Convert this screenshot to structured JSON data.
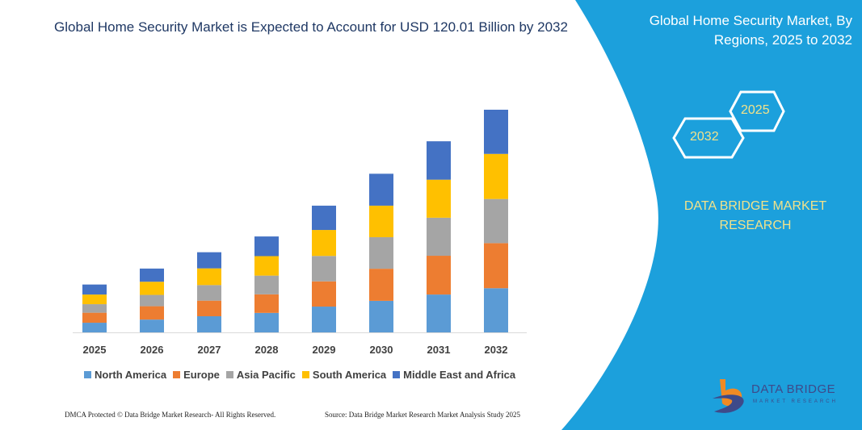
{
  "header": {
    "title": "Global Home Security Market is Expected to Account for USD 120.01 Billion by 2032"
  },
  "side_panel": {
    "title": "Global Home Security Market, By Regions, 2025 to 2032",
    "hex_start": "2025",
    "hex_end": "2032",
    "brand": "DATA BRIDGE MARKET RESEARCH",
    "background_color": "#1ca0dc",
    "logo_text": "DATA BRIDGE",
    "logo_subtext": "MARKET RESEARCH"
  },
  "footer": {
    "left": "DMCA Protected © Data Bridge Market Research-  All Rights Reserved.",
    "right": "Source: Data Bridge Market Research  Market Analysis Study 2025"
  },
  "chart_data": {
    "type": "bar",
    "stacked": true,
    "title": "Global Home Security Market is Expected to Account for USD 120.01 Billion by 2032",
    "xlabel": "",
    "ylabel": "",
    "y_axis_visible": false,
    "grid": false,
    "legend_position": "bottom",
    "ylim": [
      0,
      120.01
    ],
    "categories": [
      "2025",
      "2026",
      "2027",
      "2028",
      "2029",
      "2030",
      "2031",
      "2032"
    ],
    "series": [
      {
        "name": "North America",
        "color": "#5b9bd5",
        "values": [
          5.2,
          6.9,
          8.7,
          10.5,
          13.9,
          17.0,
          20.4,
          23.8
        ]
      },
      {
        "name": "Europe",
        "color": "#ed7d31",
        "values": [
          5.4,
          7.2,
          8.4,
          10.0,
          13.6,
          17.3,
          20.9,
          24.3
        ]
      },
      {
        "name": "Asia Pacific",
        "color": "#a5a5a5",
        "values": [
          4.6,
          6.1,
          8.4,
          10.1,
          13.7,
          17.0,
          20.5,
          23.8
        ]
      },
      {
        "name": "South America",
        "color": "#ffc000",
        "values": [
          5.2,
          7.1,
          9.0,
          10.5,
          14.0,
          17.0,
          20.5,
          24.3
        ]
      },
      {
        "name": "Middle East and Africa",
        "color": "#4472c4",
        "values": [
          5.4,
          7.1,
          8.7,
          10.6,
          13.1,
          17.2,
          20.7,
          23.81
        ]
      }
    ]
  }
}
